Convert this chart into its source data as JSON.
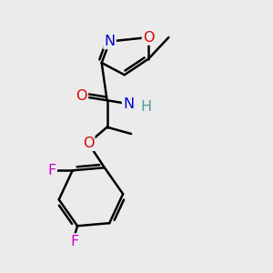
{
  "bg_color": "#ebebeb",
  "bond_color": "#000000",
  "bond_width": 1.8,
  "dbo": 0.012,
  "figsize": [
    3.0,
    3.0
  ],
  "dpi": 100,
  "xlim": [
    0,
    1
  ],
  "ylim": [
    0,
    1
  ]
}
